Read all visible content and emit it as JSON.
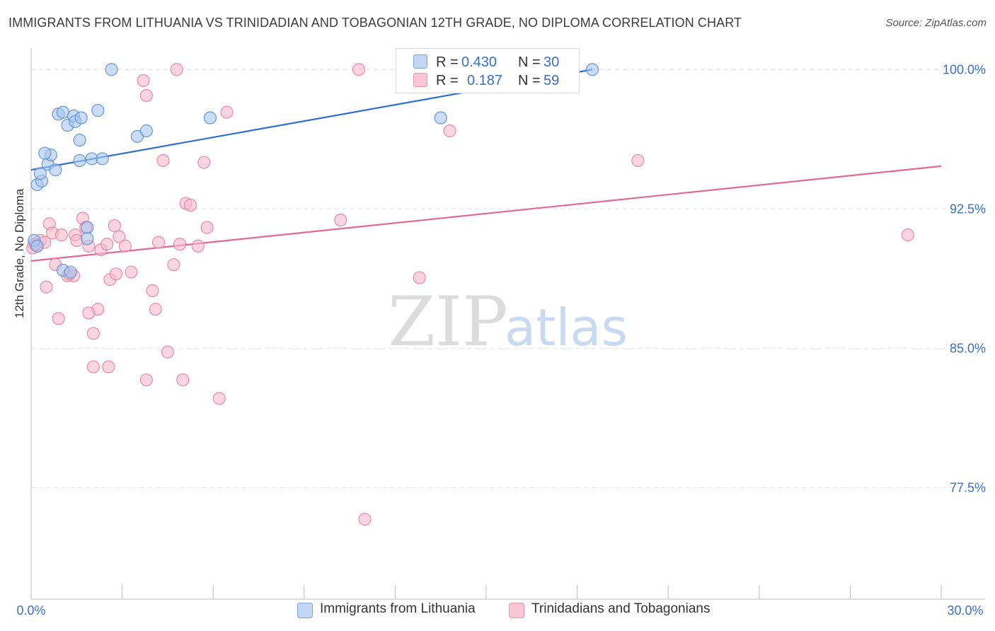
{
  "header": {
    "title": "IMMIGRANTS FROM LITHUANIA VS TRINIDADIAN AND TOBAGONIAN 12TH GRADE, NO DIPLOMA CORRELATION CHART",
    "source": "Source: ZipAtlas.com"
  },
  "watermark": {
    "zip": "ZIP",
    "atlas": "atlas"
  },
  "legend": {
    "rows": [
      {
        "r_label": "R =",
        "r_value": "0.430",
        "n_label": "N =",
        "n_value": "30"
      },
      {
        "r_label": "R =",
        "r_value": "0.187",
        "n_label": "N =",
        "n_value": "59"
      }
    ]
  },
  "colors": {
    "blue_fill": "#a9c6ef",
    "blue_stroke": "#5d8fd6",
    "blue_line": "#2f6fcf",
    "pink_fill": "#f6b8cb",
    "pink_stroke": "#e8849f",
    "pink_line": "#e06a93",
    "axis_text": "#3a6fc4",
    "grid": "#e2e2e2"
  },
  "chart_data": {
    "type": "scatter",
    "title": "IMMIGRANTS FROM LITHUANIA VS TRINIDADIAN AND TOBAGONIAN 12TH GRADE, NO DIPLOMA CORRELATION CHART",
    "xlabel": "",
    "ylabel": "12th Grade, No Diploma",
    "xlim": [
      0,
      30
    ],
    "ylim": [
      71.5,
      101
    ],
    "x_tick_labels": [
      "0.0%",
      "30.0%"
    ],
    "y_ticks": [
      77.5,
      85.0,
      92.5,
      100.0
    ],
    "y_tick_labels": [
      "77.5%",
      "85.0%",
      "92.5%",
      "100.0%"
    ],
    "grid": true,
    "legend_position": "top-center",
    "series": [
      {
        "name": "Immigrants from Lithuania",
        "color": "blue",
        "R": 0.43,
        "N": 30,
        "trend": {
          "x0": 0,
          "y0": 94.6,
          "x1": 18.5,
          "y1": 100.0
        },
        "points": [
          [
            0.2,
            93.8
          ],
          [
            0.35,
            94.0
          ],
          [
            0.3,
            94.4
          ],
          [
            0.55,
            94.9
          ],
          [
            0.65,
            95.4
          ],
          [
            0.45,
            95.5
          ],
          [
            0.8,
            94.6
          ],
          [
            0.9,
            97.6
          ],
          [
            1.05,
            97.7
          ],
          [
            1.2,
            97.0
          ],
          [
            1.4,
            97.5
          ],
          [
            1.45,
            97.2
          ],
          [
            1.65,
            97.4
          ],
          [
            1.6,
            96.2
          ],
          [
            1.6,
            95.1
          ],
          [
            2.2,
            97.8
          ],
          [
            2.0,
            95.2
          ],
          [
            2.35,
            95.2
          ],
          [
            2.65,
            100.0
          ],
          [
            3.5,
            96.4
          ],
          [
            3.8,
            96.7
          ],
          [
            5.9,
            97.4
          ],
          [
            1.85,
            91.5
          ],
          [
            1.85,
            90.9
          ],
          [
            1.05,
            89.2
          ],
          [
            1.3,
            89.1
          ],
          [
            0.1,
            90.8
          ],
          [
            0.2,
            90.5
          ],
          [
            13.5,
            97.4
          ],
          [
            18.5,
            100.0
          ]
        ]
      },
      {
        "name": "Trinidadians and Tobagonians",
        "color": "pink",
        "R": 0.187,
        "N": 59,
        "trend": {
          "x0": 0,
          "y0": 89.7,
          "x1": 30,
          "y1": 94.8
        },
        "points": [
          [
            0.1,
            90.6
          ],
          [
            0.2,
            90.5
          ],
          [
            0.3,
            90.8
          ],
          [
            0.45,
            90.7
          ],
          [
            0.6,
            91.7
          ],
          [
            0.7,
            91.2
          ],
          [
            0.8,
            89.5
          ],
          [
            1.0,
            91.1
          ],
          [
            1.2,
            88.9
          ],
          [
            1.4,
            88.9
          ],
          [
            1.45,
            91.1
          ],
          [
            1.5,
            90.8
          ],
          [
            1.7,
            92.0
          ],
          [
            1.8,
            91.5
          ],
          [
            1.9,
            90.5
          ],
          [
            2.2,
            87.1
          ],
          [
            2.3,
            90.3
          ],
          [
            2.5,
            90.6
          ],
          [
            2.6,
            88.7
          ],
          [
            2.75,
            91.6
          ],
          [
            2.8,
            89.0
          ],
          [
            2.9,
            91.0
          ],
          [
            3.1,
            90.5
          ],
          [
            3.3,
            89.1
          ],
          [
            3.8,
            83.3
          ],
          [
            4.0,
            88.1
          ],
          [
            4.1,
            87.1
          ],
          [
            4.2,
            90.7
          ],
          [
            4.35,
            95.1
          ],
          [
            4.5,
            84.8
          ],
          [
            4.7,
            89.5
          ],
          [
            4.9,
            90.6
          ],
          [
            5.0,
            83.3
          ],
          [
            5.1,
            92.8
          ],
          [
            5.25,
            92.7
          ],
          [
            5.5,
            90.5
          ],
          [
            5.7,
            95.0
          ],
          [
            5.8,
            91.5
          ],
          [
            6.2,
            82.3
          ],
          [
            6.45,
            97.7
          ],
          [
            0.9,
            86.6
          ],
          [
            1.9,
            86.9
          ],
          [
            2.05,
            85.8
          ],
          [
            2.05,
            84.0
          ],
          [
            2.55,
            84.0
          ],
          [
            0.5,
            88.3
          ],
          [
            1.25,
            89.0
          ],
          [
            3.7,
            99.4
          ],
          [
            3.8,
            98.6
          ],
          [
            4.8,
            100.0
          ],
          [
            10.2,
            91.9
          ],
          [
            10.8,
            100.0
          ],
          [
            12.8,
            88.8
          ],
          [
            13.8,
            96.7
          ],
          [
            20.0,
            95.1
          ],
          [
            28.9,
            91.1
          ],
          [
            11.0,
            75.8
          ],
          [
            0.05,
            90.4
          ],
          [
            0.15,
            90.6
          ]
        ]
      }
    ]
  },
  "bottom_legend": {
    "items": [
      {
        "label": "Immigrants from Lithuania"
      },
      {
        "label": "Trinidadians and Tobagonians"
      }
    ]
  }
}
